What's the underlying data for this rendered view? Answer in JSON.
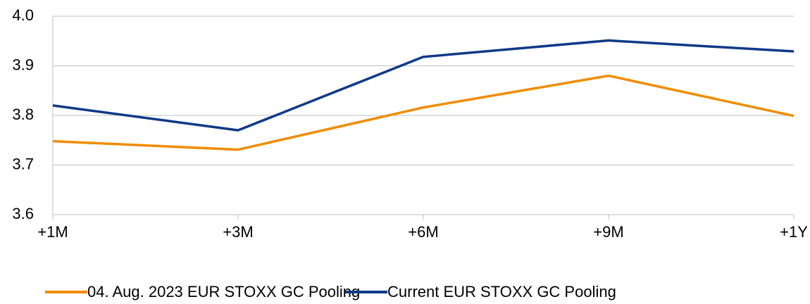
{
  "chart_data": {
    "type": "line",
    "categories": [
      "+1M",
      "+3M",
      "+6M",
      "+9M",
      "+1Y"
    ],
    "series": [
      {
        "name": "04. Aug. 2023 EUR STOXX GC Pooling",
        "color": "#f08c00",
        "values": [
          3.748,
          3.731,
          3.816,
          3.88,
          3.799
        ]
      },
      {
        "name": "Current EUR STOXX GC Pooling",
        "color": "#0f3a87",
        "values": [
          3.82,
          3.77,
          3.918,
          3.951,
          3.929
        ]
      }
    ],
    "ylim": [
      3.6,
      4.0
    ],
    "yticks": [
      3.6,
      3.7,
      3.8,
      3.9,
      {
        "value": 4.0,
        "label": "4.0"
      }
    ],
    "grid": true,
    "legend": "bottom"
  }
}
